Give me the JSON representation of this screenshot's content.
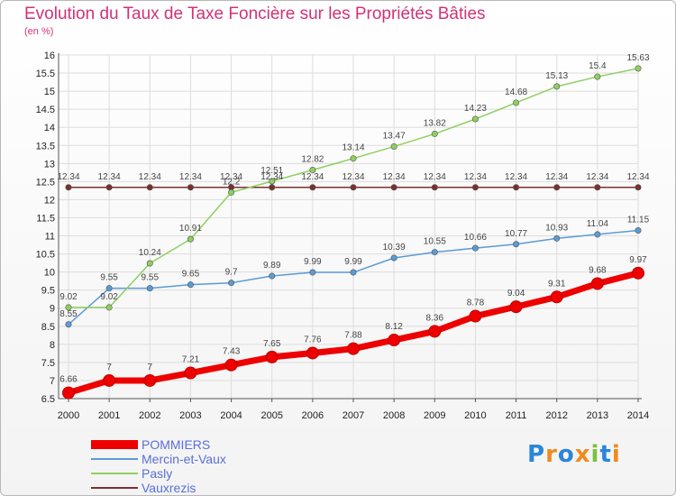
{
  "header": {
    "title": "Evolution du Taux de Taxe Foncière sur les Propriétés Bâties",
    "subtitle": "(en %)"
  },
  "logo": {
    "letters": [
      "P",
      "r",
      "o",
      "x",
      "i",
      "t",
      "i"
    ],
    "colors": [
      "#2a86d8",
      "#f08a1c",
      "#2a86d8",
      "#f08a1c",
      "#7cc040",
      "#2a86d8",
      "#f08a1c"
    ]
  },
  "chart_data": {
    "type": "line",
    "x": [
      2000,
      2001,
      2002,
      2003,
      2004,
      2005,
      2006,
      2007,
      2008,
      2009,
      2010,
      2011,
      2012,
      2013,
      2014
    ],
    "ylim": [
      6.5,
      16
    ],
    "yticks": [
      6.5,
      7,
      7.5,
      8,
      8.5,
      9,
      9.5,
      10,
      10.5,
      11,
      11.5,
      12,
      12.5,
      13,
      13.5,
      14,
      14.5,
      15,
      15.5,
      16
    ],
    "ytick_labels": [
      "6.5",
      "7",
      "7.5",
      "8",
      "8.5",
      "9",
      "9.5",
      "10",
      "10.5",
      "11",
      "11.5",
      "12",
      "12.5",
      "13",
      "13.5",
      "14",
      "14.5",
      "15",
      "15.5",
      "16"
    ],
    "grid": true,
    "legend": "bottom-left",
    "series": [
      {
        "name": "POMMIERS",
        "color": "#ee0000",
        "values": [
          6.66,
          7,
          7,
          7.21,
          7.43,
          7.65,
          7.76,
          7.88,
          8.12,
          8.36,
          8.78,
          9.04,
          9.31,
          9.68,
          9.97
        ],
        "labels": [
          "6.66",
          "7",
          "7",
          "7.21",
          "7.43",
          "7.65",
          "7.76",
          "7.88",
          "8.12",
          "8.36",
          "8.78",
          "9.04",
          "9.31",
          "9.68",
          "9.97"
        ]
      },
      {
        "name": "Mercin-et-Vaux",
        "color": "#5b9bd5",
        "values": [
          8.55,
          9.55,
          9.55,
          9.65,
          9.7,
          9.89,
          9.99,
          9.99,
          10.39,
          10.55,
          10.66,
          10.77,
          10.93,
          11.04,
          11.15
        ],
        "labels": [
          "8.55",
          "9.55",
          "9.55",
          "9.65",
          "9.7",
          "9.89",
          "9.99",
          "9.99",
          "10.39",
          "10.55",
          "10.66",
          "10.77",
          "10.93",
          "11.04",
          "11.15"
        ]
      },
      {
        "name": "Pasly",
        "color": "#8ed060",
        "values": [
          9.02,
          9.02,
          10.24,
          10.91,
          12.2,
          12.51,
          12.82,
          13.14,
          13.47,
          13.82,
          14.23,
          14.68,
          15.13,
          15.4,
          15.63
        ],
        "labels": [
          "9.02",
          "9.02",
          "10.24",
          "10.91",
          "12.2",
          "12.51",
          "12.82",
          "13.14",
          "13.47",
          "13.82",
          "14.23",
          "14.68",
          "15.13",
          "15.4",
          "15.63"
        ]
      },
      {
        "name": "Vauxrezis",
        "color": "#7a3030",
        "values": [
          12.34,
          12.34,
          12.34,
          12.34,
          12.34,
          12.34,
          12.34,
          12.34,
          12.34,
          12.34,
          12.34,
          12.34,
          12.34,
          12.34,
          12.34
        ],
        "labels": [
          "12.34",
          "12.34",
          "12.34",
          "12.34",
          "12.34",
          "12.34",
          "12.34",
          "12.34",
          "12.34",
          "12.34",
          "12.34",
          "12.34",
          "12.34",
          "12.34",
          "12.34"
        ]
      }
    ]
  }
}
